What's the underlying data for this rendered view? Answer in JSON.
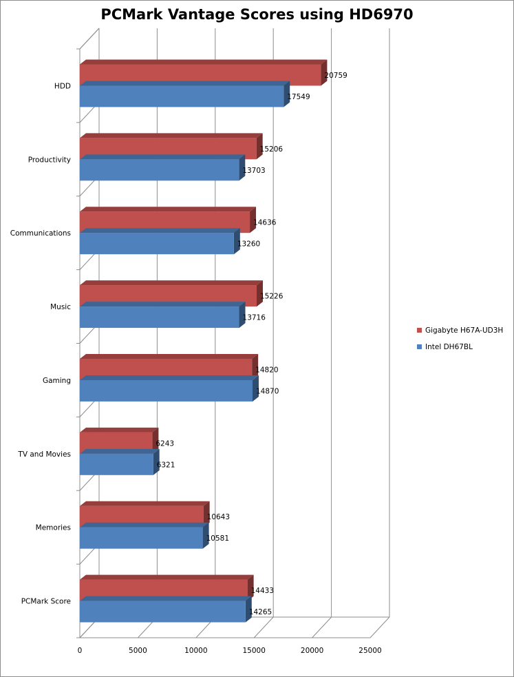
{
  "chart_data": {
    "type": "bar",
    "orientation": "horizontal",
    "style": "3d-clustered",
    "title": "PCMark Vantage Scores using HD6970",
    "categories": [
      "HDD",
      "Productivity",
      "Communications",
      "Music",
      "Gaming",
      "TV and Movies",
      "Memories",
      "PCMark Score"
    ],
    "series": [
      {
        "name": "Gigabyte H67A-UD3H",
        "color": "#c0504d",
        "values": [
          20759,
          15206,
          14636,
          15226,
          14820,
          6243,
          10643,
          14433
        ]
      },
      {
        "name": "Intel DH67BL",
        "color": "#4f81bd",
        "values": [
          17549,
          13703,
          13260,
          13716,
          14870,
          6321,
          10581,
          14265
        ]
      }
    ],
    "xlim": [
      0,
      25000
    ],
    "xticks": [
      0,
      5000,
      10000,
      15000,
      20000,
      25000
    ],
    "xlabel": "",
    "ylabel": "",
    "grid": true,
    "legend_position": "right"
  }
}
